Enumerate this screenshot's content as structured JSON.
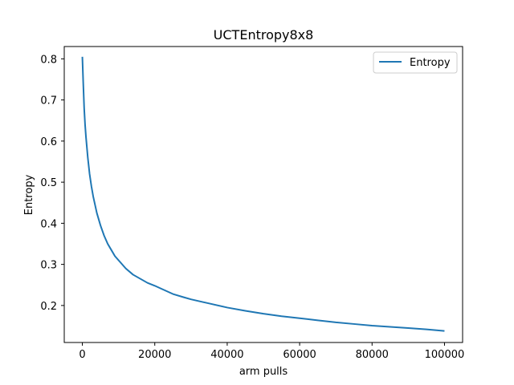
{
  "chart_data": {
    "type": "line",
    "title": "UCTEntropy8x8",
    "xlabel": "arm pulls",
    "ylabel": "Entropy",
    "xlim": [
      -5000,
      105000
    ],
    "ylim": [
      0.11,
      0.83
    ],
    "xticks": [
      0,
      20000,
      40000,
      60000,
      80000,
      100000
    ],
    "xtick_labels": [
      "0",
      "20000",
      "40000",
      "60000",
      "80000",
      "100000"
    ],
    "yticks": [
      0.2,
      0.3,
      0.4,
      0.5,
      0.6,
      0.7,
      0.8
    ],
    "ytick_labels": [
      "0.2",
      "0.3",
      "0.4",
      "0.5",
      "0.6",
      "0.7",
      "0.8"
    ],
    "grid": false,
    "legend": {
      "position": "top-right",
      "entries": [
        "Entropy"
      ]
    },
    "series": [
      {
        "name": "Entropy",
        "color": "#1f77b4",
        "x": [
          0,
          250,
          500,
          750,
          1000,
          1500,
          2000,
          2500,
          3000,
          3500,
          4000,
          5000,
          6000,
          7000,
          8000,
          9000,
          10000,
          12000,
          14000,
          16000,
          18000,
          20000,
          22000,
          25000,
          28000,
          30000,
          35000,
          40000,
          45000,
          50000,
          55000,
          60000,
          65000,
          70000,
          75000,
          80000,
          85000,
          90000,
          95000,
          100000
        ],
        "y": [
          0.805,
          0.74,
          0.68,
          0.64,
          0.61,
          0.56,
          0.52,
          0.49,
          0.465,
          0.445,
          0.425,
          0.395,
          0.37,
          0.35,
          0.335,
          0.32,
          0.31,
          0.29,
          0.275,
          0.265,
          0.255,
          0.248,
          0.24,
          0.228,
          0.22,
          0.215,
          0.205,
          0.195,
          0.187,
          0.18,
          0.174,
          0.169,
          0.164,
          0.159,
          0.155,
          0.151,
          0.148,
          0.145,
          0.142,
          0.138
        ]
      }
    ]
  }
}
